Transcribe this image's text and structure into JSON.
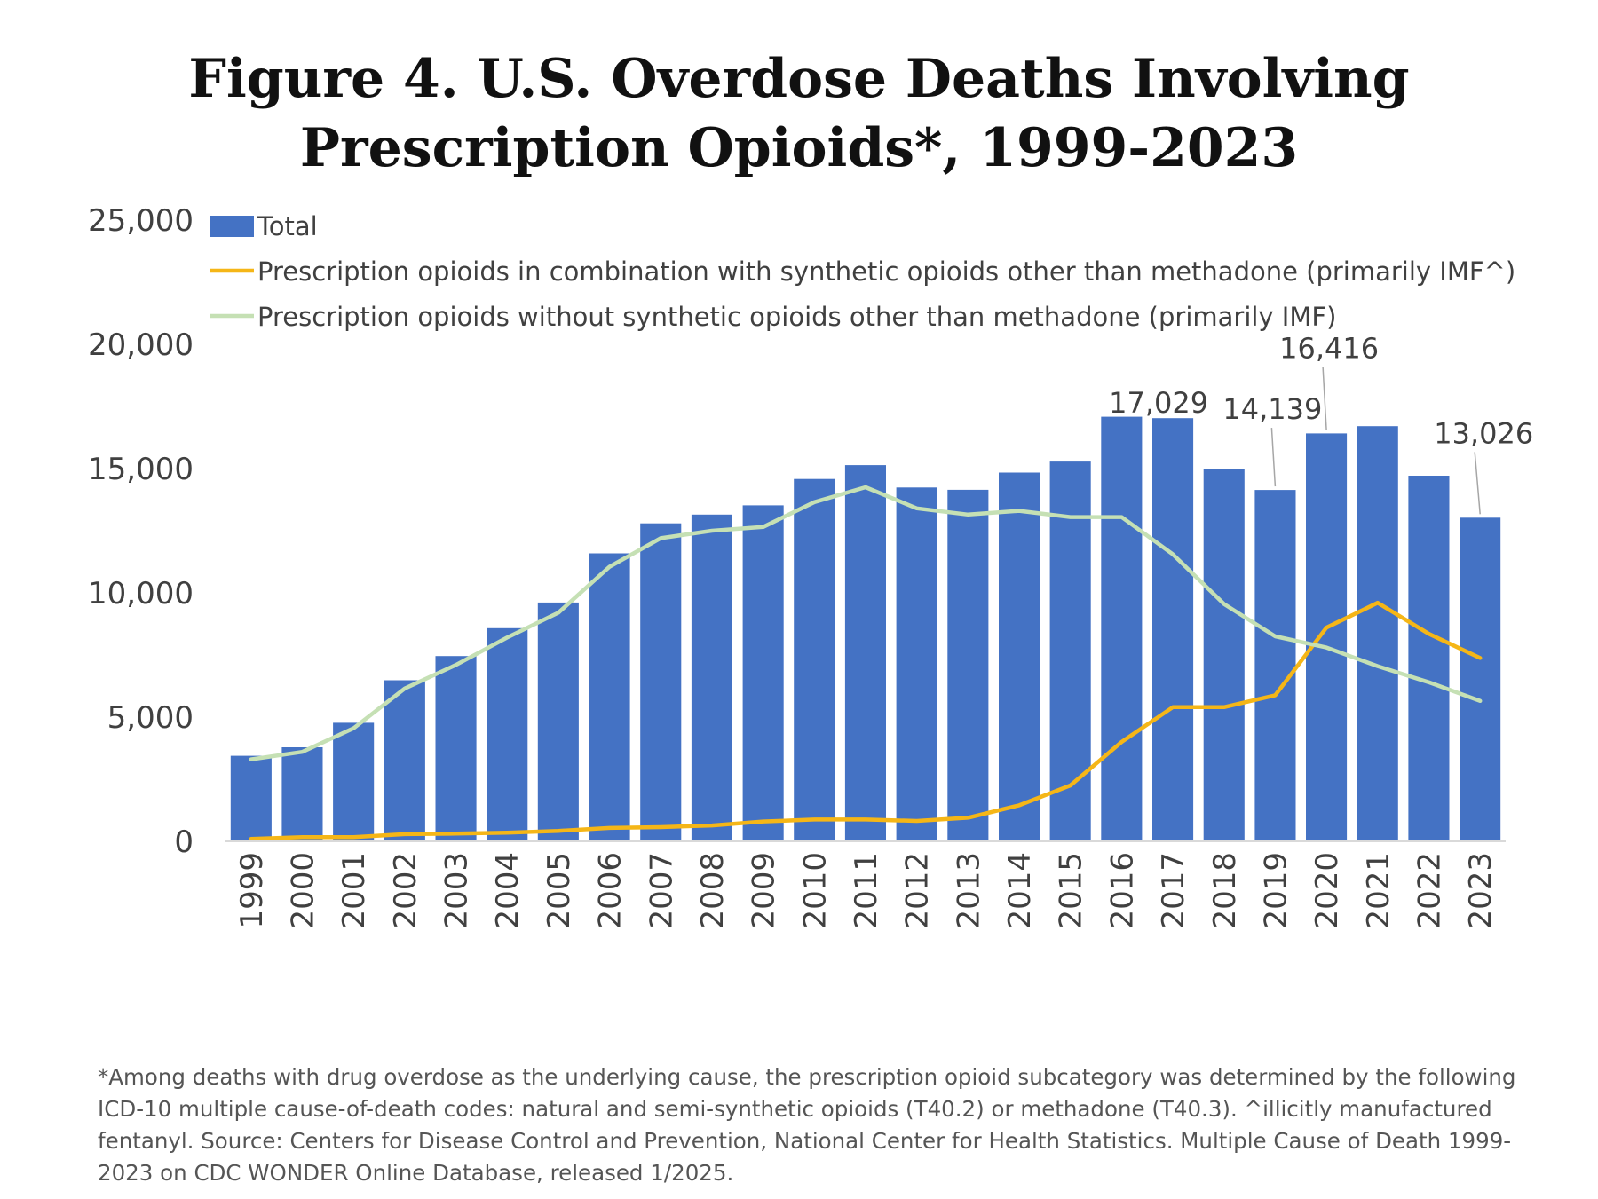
{
  "chart_data": {
    "type": "bar",
    "title": "Figure 4. U.S. Overdose Deaths Involving Prescription Opioids*, 1999-2023",
    "categories": [
      "1999",
      "2000",
      "2001",
      "2002",
      "2003",
      "2004",
      "2005",
      "2006",
      "2007",
      "2008",
      "2009",
      "2010",
      "2011",
      "2012",
      "2013",
      "2014",
      "2015",
      "2016",
      "2017",
      "2018",
      "2019",
      "2020",
      "2021",
      "2022",
      "2023"
    ],
    "ylim": [
      0,
      25000
    ],
    "yticks": [
      "0",
      "5,000",
      "10,000",
      "15,000",
      "20,000",
      "25,000"
    ],
    "ytick_values": [
      0,
      5000,
      10000,
      15000,
      20000,
      25000
    ],
    "grid": false,
    "legend_position": "top-left",
    "series": [
      {
        "name": "Total",
        "type": "bar",
        "color": "#4472C4",
        "values": [
          3442,
          3785,
          4770,
          6483,
          7456,
          8577,
          9612,
          11589,
          12796,
          13149,
          13523,
          14583,
          15140,
          14240,
          14145,
          14838,
          15281,
          17087,
          17029,
          14975,
          14139,
          16416,
          16706,
          14716,
          13026
        ]
      },
      {
        "name": "Prescription opioids in combination with synthetic opioids other than methadone (primarily IMF^)",
        "type": "line",
        "color": "#F5B617",
        "values": [
          100,
          170,
          170,
          290,
          310,
          350,
          420,
          540,
          570,
          640,
          800,
          880,
          880,
          820,
          950,
          1450,
          2250,
          4000,
          5400,
          5400,
          5880,
          8600,
          9600,
          8350,
          7380
        ]
      },
      {
        "name": "Prescription opioids without synthetic opioids other than methadone (primarily IMF)",
        "type": "line",
        "color": "#C5E0B4",
        "values": [
          3300,
          3600,
          4550,
          6150,
          7100,
          8200,
          9200,
          11050,
          12200,
          12500,
          12650,
          13650,
          14250,
          13400,
          13150,
          13300,
          13050,
          13050,
          11550,
          9550,
          8250,
          7800,
          7050,
          6400,
          5650
        ]
      }
    ],
    "annotations": [
      {
        "category": "2017",
        "text": "17,029"
      },
      {
        "category": "2019",
        "text": "14,139"
      },
      {
        "category": "2020",
        "text": "16,416"
      },
      {
        "category": "2023",
        "text": "13,026"
      }
    ]
  },
  "footnote": "*Among deaths with drug overdose as the underlying cause, the prescription opioid subcategory was determined by the following ICD-10 multiple cause-of-death codes: natural and semi-synthetic opioids (T40.2) or methadone (T40.3). ^illicitly manufactured fentanyl. Source: Centers for Disease Control and Prevention, National Center for Health Statistics. Multiple Cause of Death 1999-2023 on CDC WONDER Online Database, released 1/2025."
}
